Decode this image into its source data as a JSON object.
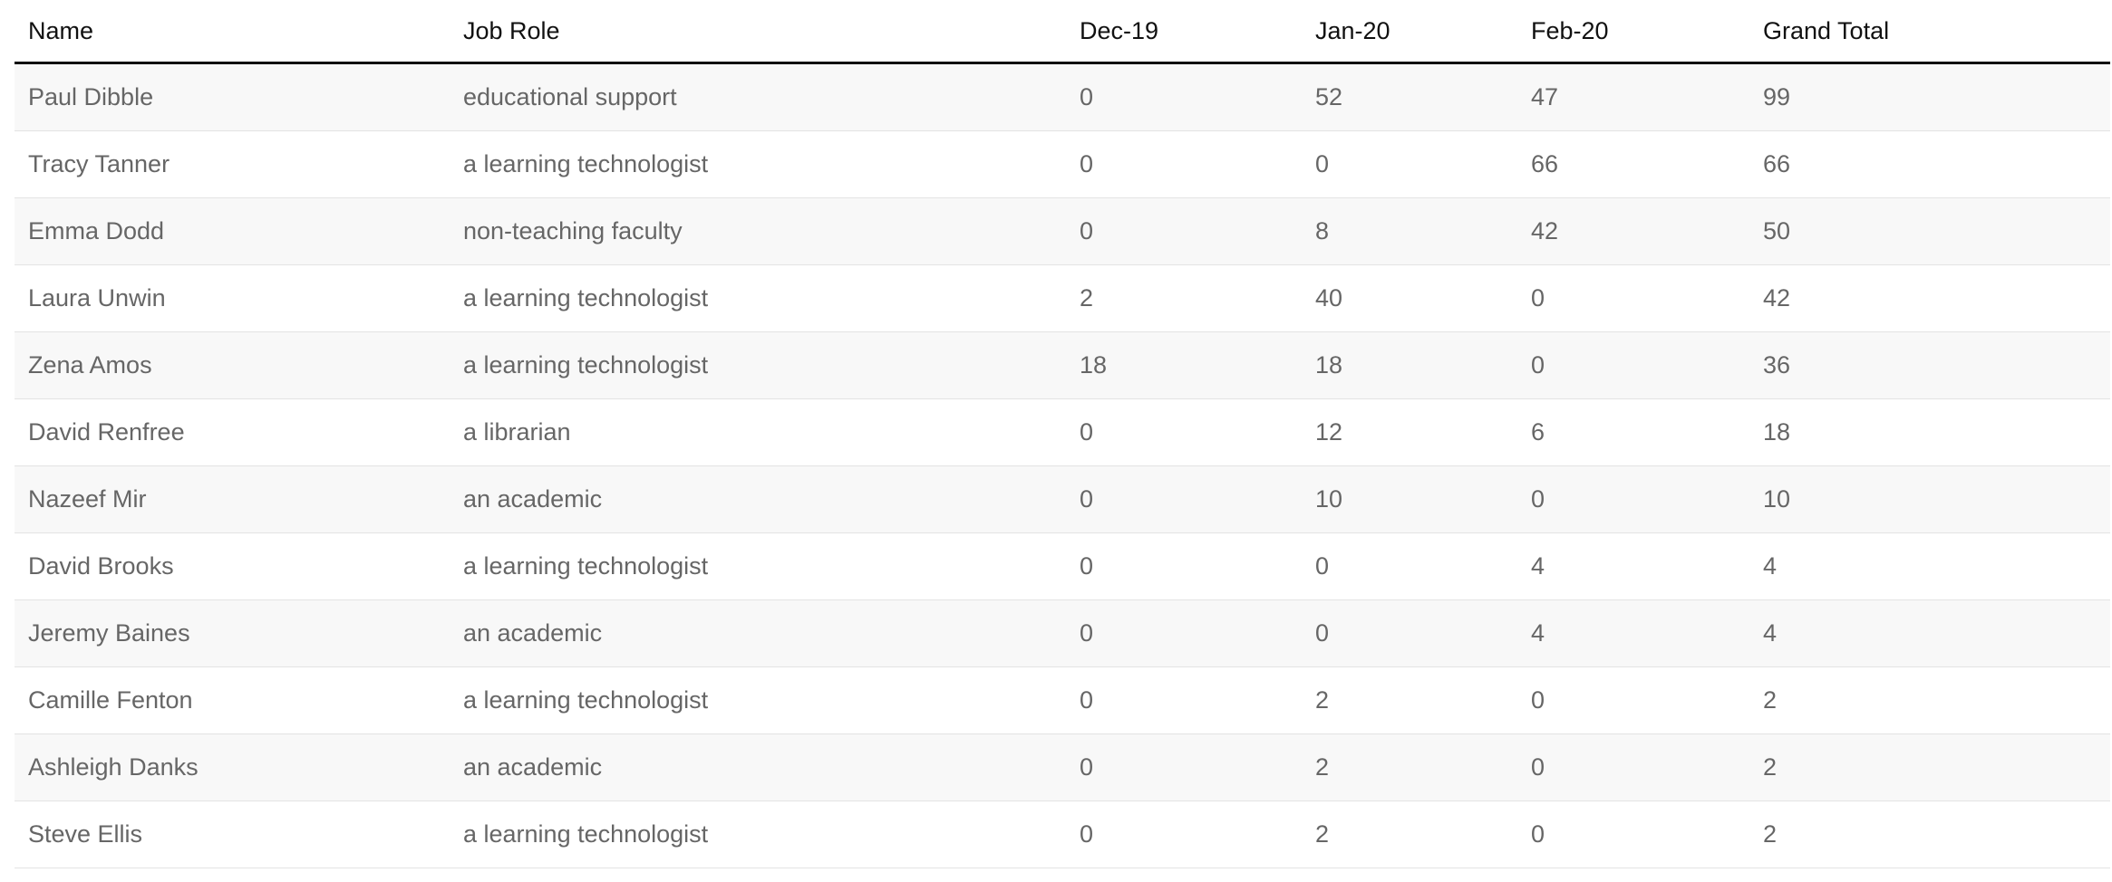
{
  "table": {
    "columns": [
      "Name",
      "Job Role",
      "Dec-19",
      "Jan-20",
      "Feb-20",
      "Grand Total"
    ],
    "rows": [
      [
        "Paul Dibble",
        "educational support",
        "0",
        "52",
        "47",
        "99"
      ],
      [
        "Tracy Tanner",
        "a learning technologist",
        "0",
        "0",
        "66",
        "66"
      ],
      [
        "Emma Dodd",
        "non-teaching faculty",
        "0",
        "8",
        "42",
        "50"
      ],
      [
        "Laura Unwin",
        "a learning technologist",
        "2",
        "40",
        "0",
        "42"
      ],
      [
        "Zena Amos",
        "a learning technologist",
        "18",
        "18",
        "0",
        "36"
      ],
      [
        "David Renfree",
        "a librarian",
        "0",
        "12",
        "6",
        "18"
      ],
      [
        "Nazeef Mir",
        "an academic",
        "0",
        "10",
        "0",
        "10"
      ],
      [
        "David Brooks",
        "a learning technologist",
        "0",
        "0",
        "4",
        "4"
      ],
      [
        "Jeremy Baines",
        "an academic",
        "0",
        "0",
        "4",
        "4"
      ],
      [
        "Camille Fenton",
        "a learning technologist",
        "0",
        "2",
        "0",
        "2"
      ],
      [
        "Ashleigh Danks",
        "an academic",
        "0",
        "2",
        "0",
        "2"
      ],
      [
        "Steve Ellis",
        "a learning technologist",
        "0",
        "2",
        "0",
        "2"
      ]
    ]
  },
  "colors": {
    "header_text": "#111111",
    "cell_text": "#666666",
    "stripe": "#f8f8f8",
    "row_border": "#e3e3e3",
    "header_border": "#111111"
  }
}
